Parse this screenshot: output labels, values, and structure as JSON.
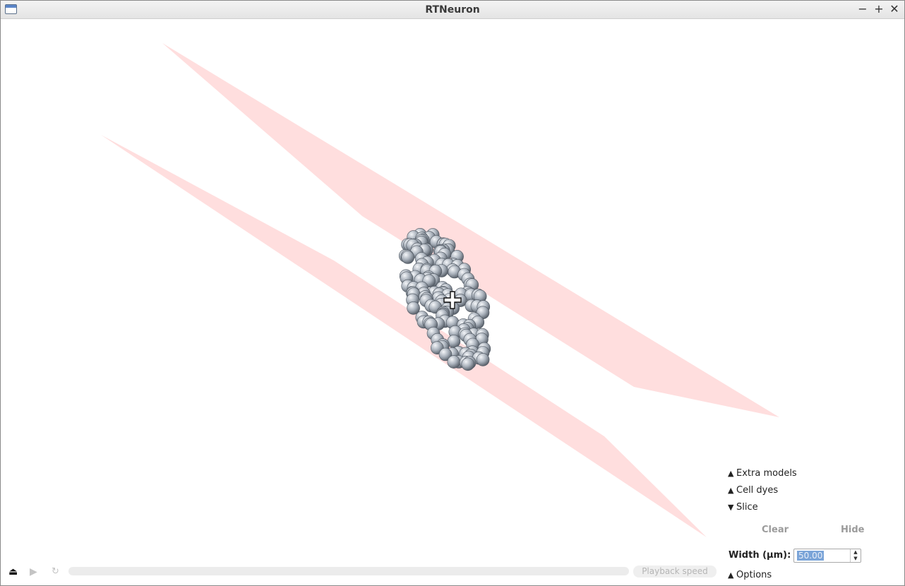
{
  "window": {
    "title": "RTNeuron",
    "minimize_glyph": "−",
    "maximize_glyph": "+",
    "close_glyph": "✕"
  },
  "scene": {
    "slice_plane_color": "#ffdddd",
    "soma_color": "#a9b1bb",
    "cursor_icon": "move-cursor-icon"
  },
  "panel": {
    "extra_models": {
      "arrow": "▲",
      "label": "Extra models"
    },
    "cell_dyes": {
      "arrow": "▲",
      "label": "Cell dyes"
    },
    "slice": {
      "arrow": "▼",
      "label": "Slice"
    },
    "clear_label": "Clear",
    "hide_label": "Hide",
    "width_label": "Width (µm):",
    "width_value": "50.00",
    "options": {
      "arrow": "▲",
      "label": "Options"
    }
  },
  "toolbar": {
    "eject_glyph": "⏏",
    "play_glyph": "▶",
    "loop_glyph": "↻",
    "playback_speed_label": "Playback speed"
  }
}
